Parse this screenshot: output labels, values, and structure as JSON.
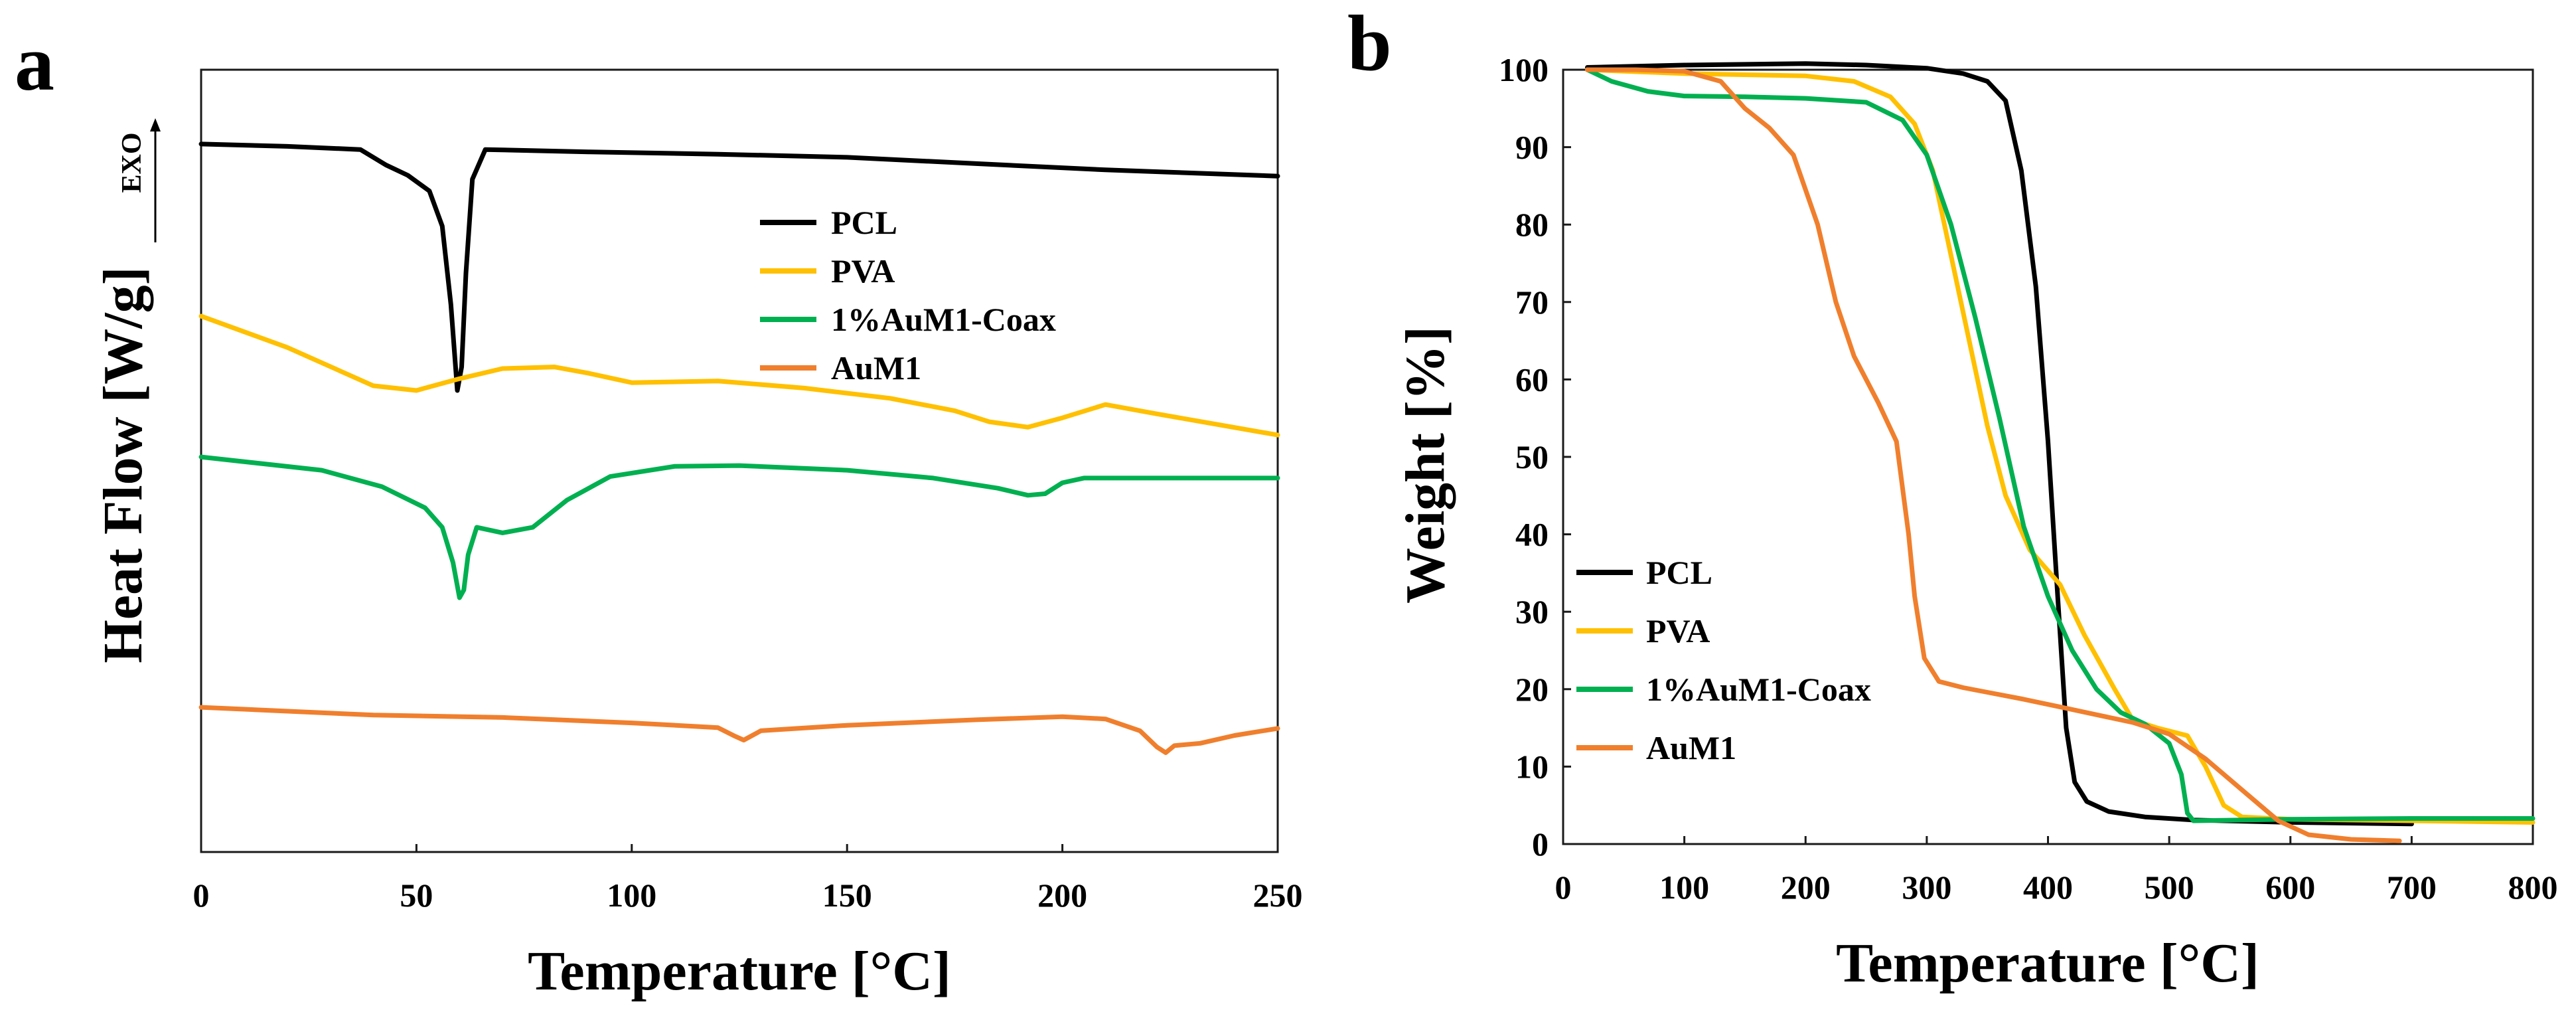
{
  "chart_data": [
    {
      "panel": "a",
      "type": "line",
      "title": "",
      "xlabel": "Temperature [°C]",
      "ylabel": "Heat Flow [W/g]",
      "exo_label": "EXO",
      "xlim": [
        0,
        250
      ],
      "ylim": [
        0,
        100
      ],
      "x_ticks": [
        0,
        50,
        100,
        150,
        200,
        250
      ],
      "y_ticks": [],
      "y_units": "relative (no numeric y-axis shown)",
      "legend_position": "upper-middle",
      "series": [
        {
          "name": "PCL",
          "color": "#000000",
          "points": [
            [
              0,
              90.5
            ],
            [
              20,
              90.2
            ],
            [
              37,
              89.8
            ],
            [
              43,
              87.8
            ],
            [
              48,
              86.5
            ],
            [
              53,
              84.5
            ],
            [
              56,
              80
            ],
            [
              58,
              70
            ],
            [
              59.5,
              59
            ],
            [
              60.5,
              62
            ],
            [
              61.5,
              74
            ],
            [
              63,
              86
            ],
            [
              66,
              89.8
            ],
            [
              90,
              89.5
            ],
            [
              120,
              89.2
            ],
            [
              150,
              88.8
            ],
            [
              180,
              88
            ],
            [
              210,
              87.2
            ],
            [
              250,
              86.4
            ]
          ]
        },
        {
          "name": "PVA",
          "color": "#ffc000",
          "points": [
            [
              0,
              68.5
            ],
            [
              20,
              64.5
            ],
            [
              40,
              59.6
            ],
            [
              50,
              59
            ],
            [
              60,
              60.5
            ],
            [
              70,
              61.8
            ],
            [
              82,
              62
            ],
            [
              90,
              61.2
            ],
            [
              100,
              60
            ],
            [
              120,
              60.2
            ],
            [
              140,
              59.3
            ],
            [
              160,
              58
            ],
            [
              175,
              56.4
            ],
            [
              183,
              55
            ],
            [
              192,
              54.3
            ],
            [
              200,
              55.5
            ],
            [
              210,
              57.2
            ],
            [
              222,
              56
            ],
            [
              250,
              53.3
            ]
          ]
        },
        {
          "name": "1%AuM1-Coax",
          "color": "#00b050",
          "points": [
            [
              0,
              50.5
            ],
            [
              28,
              48.8
            ],
            [
              42,
              46.7
            ],
            [
              52,
              44
            ],
            [
              56,
              41.5
            ],
            [
              58.5,
              37
            ],
            [
              60,
              32.5
            ],
            [
              61,
              33.5
            ],
            [
              62,
              38
            ],
            [
              64,
              41.5
            ],
            [
              70,
              40.8
            ],
            [
              77,
              41.5
            ],
            [
              85,
              45
            ],
            [
              95,
              48
            ],
            [
              110,
              49.3
            ],
            [
              125,
              49.4
            ],
            [
              150,
              48.8
            ],
            [
              170,
              47.8
            ],
            [
              185,
              46.5
            ],
            [
              192,
              45.6
            ],
            [
              196,
              45.8
            ],
            [
              200,
              47.2
            ],
            [
              205,
              47.8
            ],
            [
              250,
              47.8
            ]
          ]
        },
        {
          "name": "AuM1",
          "color": "#f07f2d",
          "points": [
            [
              0,
              18.5
            ],
            [
              40,
              17.5
            ],
            [
              70,
              17.2
            ],
            [
              100,
              16.5
            ],
            [
              120,
              15.9
            ],
            [
              124,
              14.8
            ],
            [
              126,
              14.3
            ],
            [
              130,
              15.5
            ],
            [
              150,
              16.2
            ],
            [
              180,
              16.9
            ],
            [
              200,
              17.3
            ],
            [
              210,
              17
            ],
            [
              218,
              15.5
            ],
            [
              222,
              13.4
            ],
            [
              224,
              12.7
            ],
            [
              226,
              13.6
            ],
            [
              232,
              13.9
            ],
            [
              240,
              14.9
            ],
            [
              250,
              15.8
            ]
          ]
        }
      ]
    },
    {
      "panel": "b",
      "type": "line",
      "title": "",
      "xlabel": "Temperature [°C]",
      "ylabel": "Weight [%]",
      "xlim": [
        0,
        800
      ],
      "ylim": [
        0,
        100
      ],
      "x_ticks": [
        0,
        100,
        200,
        300,
        400,
        500,
        600,
        700,
        800
      ],
      "y_ticks": [
        0,
        10,
        20,
        30,
        40,
        50,
        60,
        70,
        80,
        90,
        100
      ],
      "legend_position": "lower-left",
      "series": [
        {
          "name": "PCL",
          "color": "#000000",
          "points": [
            [
              20,
              100.3
            ],
            [
              100,
              100.6
            ],
            [
              200,
              100.8
            ],
            [
              250,
              100.6
            ],
            [
              300,
              100.2
            ],
            [
              330,
              99.5
            ],
            [
              350,
              98.5
            ],
            [
              365,
              96
            ],
            [
              378,
              87
            ],
            [
              390,
              72
            ],
            [
              400,
              52
            ],
            [
              408,
              32
            ],
            [
              415,
              15
            ],
            [
              422,
              8
            ],
            [
              432,
              5.5
            ],
            [
              450,
              4.2
            ],
            [
              480,
              3.5
            ],
            [
              520,
              3.1
            ],
            [
              600,
              2.8
            ],
            [
              700,
              2.6
            ]
          ]
        },
        {
          "name": "PVA",
          "color": "#ffc000",
          "points": [
            [
              20,
              100
            ],
            [
              100,
              99.5
            ],
            [
              200,
              99.2
            ],
            [
              240,
              98.5
            ],
            [
              270,
              96.5
            ],
            [
              290,
              93
            ],
            [
              305,
              87
            ],
            [
              320,
              76
            ],
            [
              335,
              65
            ],
            [
              350,
              54
            ],
            [
              365,
              45
            ],
            [
              385,
              38
            ],
            [
              410,
              33.5
            ],
            [
              430,
              27
            ],
            [
              455,
              20
            ],
            [
              470,
              16
            ],
            [
              490,
              15
            ],
            [
              515,
              14
            ],
            [
              530,
              10
            ],
            [
              545,
              5
            ],
            [
              560,
              3.5
            ],
            [
              600,
              3.2
            ],
            [
              700,
              3
            ],
            [
              800,
              2.8
            ]
          ]
        },
        {
          "name": "1%AuM1-Coax",
          "color": "#00b050",
          "points": [
            [
              20,
              100
            ],
            [
              40,
              98.5
            ],
            [
              70,
              97.2
            ],
            [
              100,
              96.6
            ],
            [
              150,
              96.5
            ],
            [
              200,
              96.3
            ],
            [
              250,
              95.8
            ],
            [
              280,
              93.5
            ],
            [
              300,
              89
            ],
            [
              320,
              80
            ],
            [
              340,
              68
            ],
            [
              360,
              55
            ],
            [
              380,
              41
            ],
            [
              400,
              32
            ],
            [
              420,
              25
            ],
            [
              440,
              20
            ],
            [
              460,
              17
            ],
            [
              480,
              15.5
            ],
            [
              500,
              13
            ],
            [
              510,
              9
            ],
            [
              515,
              4
            ],
            [
              520,
              3
            ],
            [
              600,
              3.2
            ],
            [
              700,
              3.3
            ],
            [
              800,
              3.3
            ]
          ]
        },
        {
          "name": "AuM1",
          "color": "#f07f2d",
          "points": [
            [
              20,
              100
            ],
            [
              60,
              100
            ],
            [
              100,
              99.8
            ],
            [
              130,
              98.5
            ],
            [
              150,
              95
            ],
            [
              170,
              92.5
            ],
            [
              190,
              89
            ],
            [
              210,
              80
            ],
            [
              225,
              70
            ],
            [
              240,
              63
            ],
            [
              260,
              57
            ],
            [
              275,
              52
            ],
            [
              285,
              40
            ],
            [
              290,
              32
            ],
            [
              298,
              24
            ],
            [
              310,
              21
            ],
            [
              330,
              20.2
            ],
            [
              350,
              19.6
            ],
            [
              380,
              18.7
            ],
            [
              410,
              17.7
            ],
            [
              440,
              16.7
            ],
            [
              470,
              15.7
            ],
            [
              500,
              14.2
            ],
            [
              530,
              11
            ],
            [
              560,
              7
            ],
            [
              590,
              3
            ],
            [
              615,
              1.2
            ],
            [
              650,
              0.6
            ],
            [
              690,
              0.4
            ]
          ]
        }
      ]
    }
  ]
}
